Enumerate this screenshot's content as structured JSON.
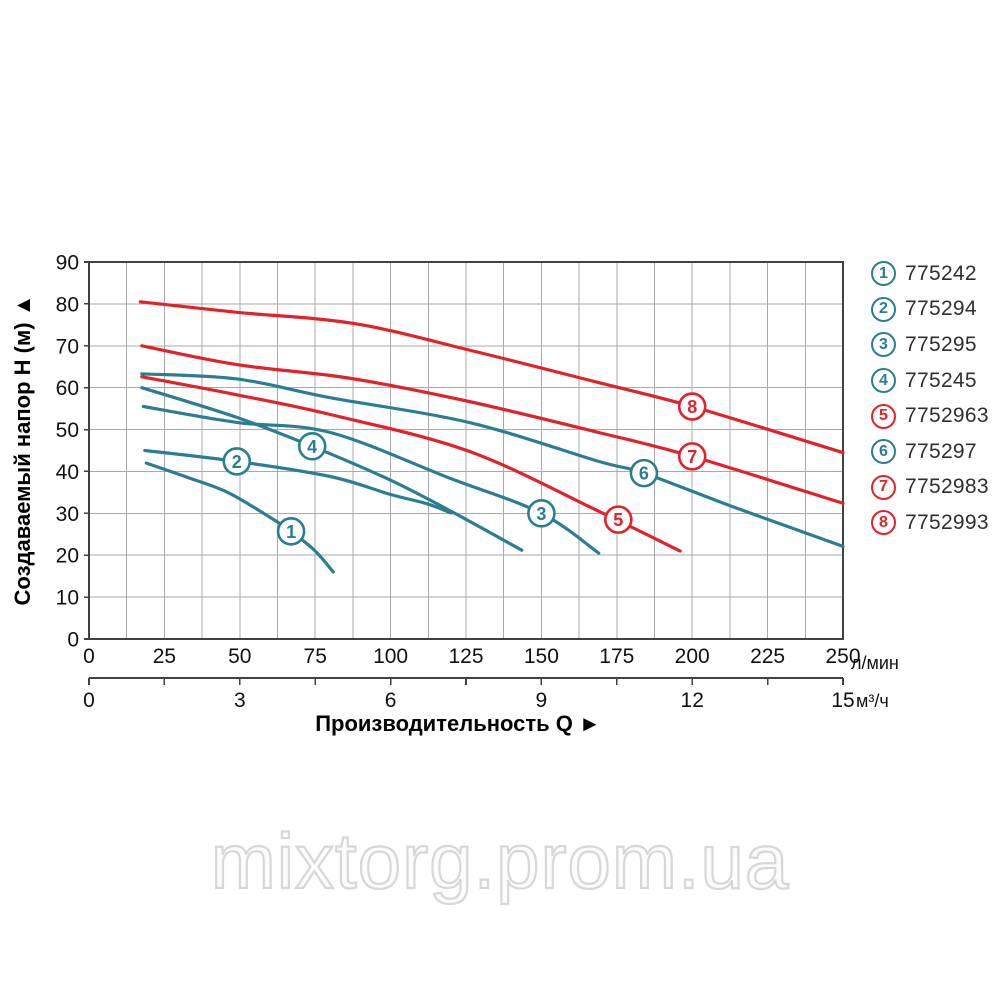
{
  "watermark": {
    "text": "mixtorg.prom.ua"
  },
  "chart_data": {
    "type": "line",
    "title": "",
    "x_title": "Производительность Q  ►",
    "y_axis": {
      "title": "Создаваемый напор H (м) ▲",
      "tick_labels": [
        0,
        10,
        20,
        30,
        40,
        50,
        60,
        70,
        80,
        90
      ],
      "range_m": [
        0,
        90
      ],
      "grid_step_m": 10
    },
    "x_axis_primary": {
      "unit": "л/мин",
      "tick_labels": [
        0,
        25,
        50,
        75,
        100,
        125,
        150,
        175,
        200,
        225,
        250
      ],
      "range_lmin": [
        0,
        250
      ],
      "grid_step_lmin": 12.5
    },
    "x_axis_secondary": {
      "unit": "м³/ч",
      "tick_labels": [
        0,
        3,
        6,
        9,
        12,
        15
      ],
      "range_m3h": [
        0,
        15
      ],
      "tick_step_m3h": 1.5
    },
    "grid": {
      "on": true
    },
    "legend_position": "right",
    "colors": {
      "teal": "#2a7d93",
      "red": "#e22128",
      "grid": "#a9a9a9",
      "axis": "#414141",
      "text": "#111111"
    },
    "series": [
      {
        "num": 1,
        "model": "775242",
        "color": "teal",
        "badge_at": [
          67,
          25.7
        ],
        "points_q_lmin_h_m": [
          [
            19,
            42
          ],
          [
            33,
            38.5
          ],
          [
            46,
            35
          ],
          [
            59,
            29.5
          ],
          [
            67,
            25.7
          ],
          [
            75,
            21
          ],
          [
            81,
            16
          ]
        ]
      },
      {
        "num": 2,
        "model": "775294",
        "color": "teal",
        "badge_at": [
          49,
          42.4
        ],
        "points_q_lmin_h_m": [
          [
            18.5,
            45
          ],
          [
            49,
            42.4
          ],
          [
            80,
            38.8
          ],
          [
            100,
            34.5
          ],
          [
            112,
            32.3
          ],
          [
            120,
            30.1
          ]
        ]
      },
      {
        "num": 3,
        "model": "775295",
        "color": "teal",
        "badge_at": [
          150,
          30
        ],
        "points_q_lmin_h_m": [
          [
            18,
            55.5
          ],
          [
            49,
            51.7
          ],
          [
            80,
            49.3
          ],
          [
            120,
            38.3
          ],
          [
            150,
            30
          ],
          [
            169,
            20.5
          ]
        ]
      },
      {
        "num": 4,
        "model": "775245",
        "color": "teal",
        "badge_at": [
          74,
          46
        ],
        "points_q_lmin_h_m": [
          [
            17.5,
            60
          ],
          [
            49,
            52.9
          ],
          [
            74,
            46
          ],
          [
            100,
            37.9
          ],
          [
            120,
            30.5
          ],
          [
            143.5,
            21.2
          ]
        ]
      },
      {
        "num": 5,
        "model": "7752963",
        "color": "red",
        "badge_at": [
          175.5,
          28.5
        ],
        "points_q_lmin_h_m": [
          [
            17.5,
            62.6
          ],
          [
            49,
            58.3
          ],
          [
            80,
            53.6
          ],
          [
            126,
            44.8
          ],
          [
            169,
            30.5
          ],
          [
            196,
            21
          ]
        ]
      },
      {
        "num": 6,
        "model": "775297",
        "color": "teal",
        "badge_at": [
          184,
          39.6
        ],
        "points_q_lmin_h_m": [
          [
            17.5,
            63.3
          ],
          [
            49,
            62.1
          ],
          [
            80,
            57.6
          ],
          [
            126,
            51.7
          ],
          [
            169,
            42.4
          ],
          [
            184,
            39.6
          ],
          [
            213,
            31.7
          ],
          [
            250,
            22.1
          ]
        ]
      },
      {
        "num": 7,
        "model": "7752983",
        "color": "red",
        "badge_at": [
          200,
          43.6
        ],
        "points_q_lmin_h_m": [
          [
            17.5,
            70
          ],
          [
            49,
            65.5
          ],
          [
            86,
            62.3
          ],
          [
            126,
            56.7
          ],
          [
            169,
            49.3
          ],
          [
            200,
            43.6
          ],
          [
            250,
            32.4
          ]
        ]
      },
      {
        "num": 8,
        "model": "7752993",
        "color": "red",
        "badge_at": [
          200,
          55.5
        ],
        "points_q_lmin_h_m": [
          [
            17,
            80.5
          ],
          [
            49,
            78
          ],
          [
            88,
            75.3
          ],
          [
            126,
            69
          ],
          [
            169,
            61.2
          ],
          [
            200,
            55.5
          ],
          [
            250,
            44.5
          ]
        ]
      }
    ]
  }
}
